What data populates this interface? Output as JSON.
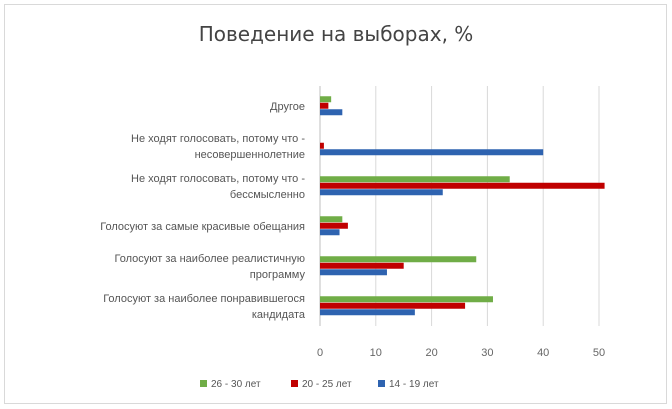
{
  "chart_data": {
    "type": "bar",
    "orientation": "horizontal",
    "title": "Поведение на выборах, %",
    "xlabel": "",
    "ylabel": "",
    "xlim": [
      0,
      50
    ],
    "ticks": [
      0,
      10,
      20,
      30,
      40,
      50
    ],
    "grid": true,
    "legend_position": "bottom",
    "categories": [
      [
        "Другое"
      ],
      [
        "Не ходят голосовать, потому что -",
        "несовершеннолетние"
      ],
      [
        "Не ходят голосовать,  потому что -",
        "бессмысленно"
      ],
      [
        "Голосуют за самые красивые обещания"
      ],
      [
        "Голосуют за наиболее реалистичную",
        "программу"
      ],
      [
        "Голосуют за наиболее понравившегося",
        "кандидата"
      ]
    ],
    "series": [
      {
        "name": "26 - 30 лет",
        "color": "#70ad47",
        "values": [
          2,
          0,
          34,
          4,
          28,
          31
        ]
      },
      {
        "name": "20 - 25 лет",
        "color": "#c00000",
        "values": [
          1.5,
          0.7,
          51,
          5,
          15,
          26
        ]
      },
      {
        "name": "14 - 19 лет",
        "color": "#2e63b0",
        "values": [
          4,
          40,
          22,
          3.5,
          12,
          17
        ]
      }
    ]
  }
}
